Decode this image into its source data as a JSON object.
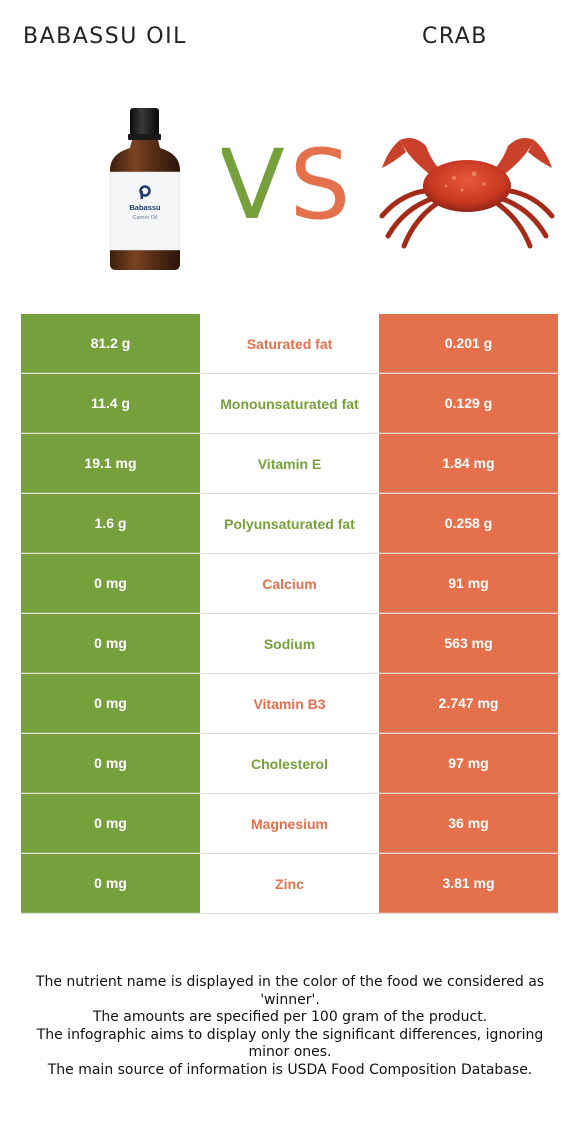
{
  "foods": {
    "left": {
      "name": "BABASSU OIL",
      "label_brand": "Babassu",
      "label_sub": "Carrier Oil",
      "color": "#76a03c"
    },
    "right": {
      "name": "CRAB",
      "color": "#e4704c"
    }
  },
  "vs": {
    "v": "V",
    "s": "S"
  },
  "rows": [
    {
      "nutrient": "Saturated fat",
      "left": "81.2 g",
      "right": "0.201 g",
      "winner": "right"
    },
    {
      "nutrient": "Monounsaturated fat",
      "left": "11.4 g",
      "right": "0.129 g",
      "winner": "left"
    },
    {
      "nutrient": "Vitamin E",
      "left": "19.1 mg",
      "right": "1.84 mg",
      "winner": "left"
    },
    {
      "nutrient": "Polyunsaturated fat",
      "left": "1.6 g",
      "right": "0.258 g",
      "winner": "left"
    },
    {
      "nutrient": "Calcium",
      "left": "0 mg",
      "right": "91 mg",
      "winner": "right"
    },
    {
      "nutrient": "Sodium",
      "left": "0 mg",
      "right": "563 mg",
      "winner": "left"
    },
    {
      "nutrient": "Vitamin B3",
      "left": "0 mg",
      "right": "2.747 mg",
      "winner": "right"
    },
    {
      "nutrient": "Cholesterol",
      "left": "0 mg",
      "right": "97 mg",
      "winner": "left"
    },
    {
      "nutrient": "Magnesium",
      "left": "0 mg",
      "right": "36 mg",
      "winner": "right"
    },
    {
      "nutrient": "Zinc",
      "left": "0 mg",
      "right": "3.81 mg",
      "winner": "right"
    }
  ],
  "footnote": [
    "The nutrient name is displayed in the color of the food we considered as 'winner'.",
    "The amounts are specified per 100 gram of the product.",
    "The infographic aims to display only the significant differences, ignoring minor ones.",
    "The main source of information is USDA Food Composition Database."
  ]
}
